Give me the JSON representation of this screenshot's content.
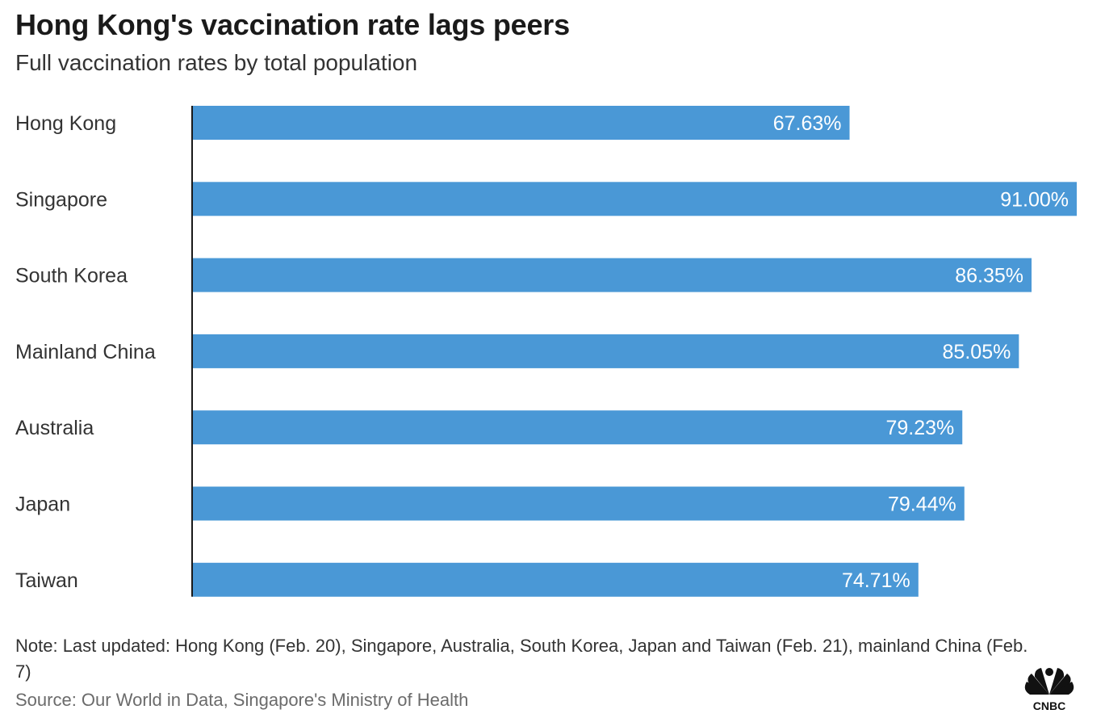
{
  "header": {
    "title": "Hong Kong's vaccination rate lags peers",
    "subtitle": "Full vaccination rates by total population"
  },
  "footer": {
    "note": "Note: Last updated: Hong Kong (Feb. 20), Singapore, Australia, South Korea, Japan and Taiwan (Feb. 21), mainland China (Feb. 7)",
    "source": "Source: Our World in Data, Singapore's Ministry of Health",
    "logo_text": "CNBC"
  },
  "colors": {
    "bar": "#4a98d6",
    "bar_label": "#ffffff",
    "axis": "#1a1a1a",
    "category_label": "#333333"
  },
  "chart_data": {
    "type": "bar",
    "orientation": "horizontal",
    "categories": [
      "Hong Kong",
      "Singapore",
      "South Korea",
      "Mainland China",
      "Australia",
      "Japan",
      "Taiwan"
    ],
    "values": [
      67.63,
      91.0,
      86.35,
      85.05,
      79.23,
      79.44,
      74.71
    ],
    "data_labels": [
      "67.63%",
      "91.00%",
      "86.35%",
      "85.05%",
      "79.23%",
      "79.44%",
      "74.71%"
    ],
    "unit": "%",
    "title": "Hong Kong's vaccination rate lags peers",
    "subtitle": "Full vaccination rates by total population",
    "xlim": [
      0,
      91
    ],
    "grid": false,
    "legend": "none"
  }
}
